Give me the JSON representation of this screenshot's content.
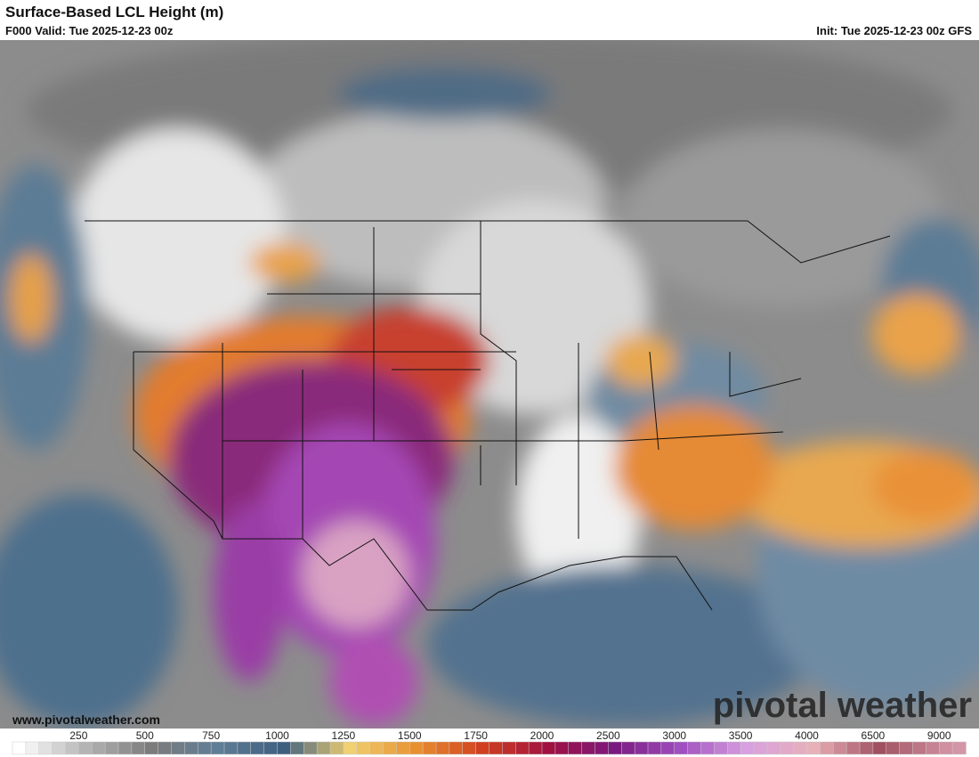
{
  "header": {
    "title": "Surface-Based LCL Height (m)",
    "valid": "F000 Valid: Tue 2025-12-23 00z",
    "init": "Init: Tue 2025-12-23 00z GFS"
  },
  "watermark": {
    "url": "www.pivotalweather.com",
    "brand": "pivotal weather"
  },
  "colorbar": {
    "ticks": [
      250,
      500,
      750,
      1000,
      1250,
      1500,
      1750,
      2000,
      2500,
      3000,
      3500,
      4000,
      6500,
      9000
    ],
    "colors": [
      "#ffffff",
      "#b4b4b4",
      "#7c7c7c",
      "#5f7d96",
      "#3f5f7f",
      "#f0d070",
      "#e89030",
      "#d04020",
      "#a01040",
      "#7a1a80",
      "#a050c0",
      "#d8a0e0",
      "#e8b0b8",
      "#a05060",
      "#d090a0",
      "#e0b0c0"
    ]
  }
}
